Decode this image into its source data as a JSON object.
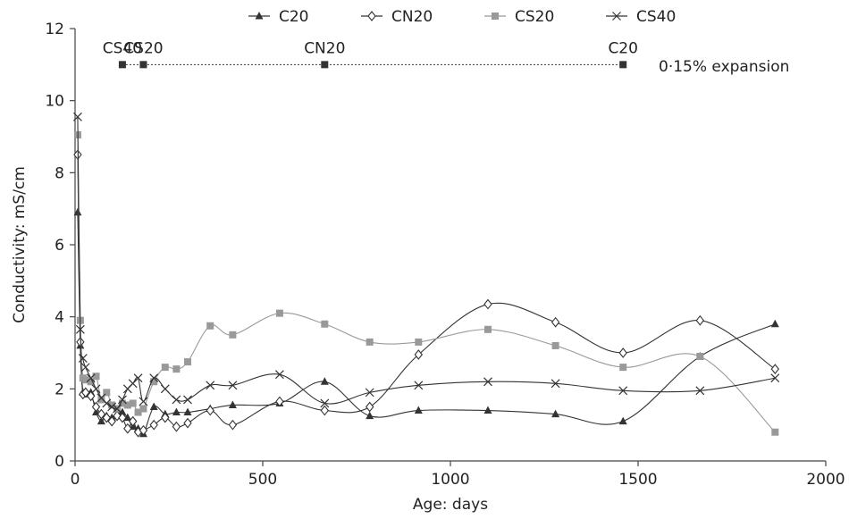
{
  "chart_data": {
    "type": "line",
    "xlabel": "Age: days",
    "ylabel": "Conductivity: mS/cm",
    "xlim": [
      0,
      2000
    ],
    "ylim": [
      0,
      12
    ],
    "x_ticks": [
      0,
      500,
      1000,
      1500,
      2000
    ],
    "y_ticks": [
      0,
      2,
      4,
      6,
      8,
      10,
      12
    ],
    "grid": false,
    "legend_position": "top-center",
    "series": [
      {
        "name": "C20",
        "marker": "triangle",
        "color": "#333333",
        "points": [
          [
            7,
            6.9
          ],
          [
            14,
            3.2
          ],
          [
            21,
            1.9
          ],
          [
            28,
            1.85
          ],
          [
            42,
            1.9
          ],
          [
            56,
            1.35
          ],
          [
            70,
            1.1
          ],
          [
            84,
            1.25
          ],
          [
            98,
            1.2
          ],
          [
            112,
            1.3
          ],
          [
            126,
            1.35
          ],
          [
            140,
            1.2
          ],
          [
            154,
            0.95
          ],
          [
            168,
            0.9
          ],
          [
            182,
            0.75
          ],
          [
            210,
            1.5
          ],
          [
            240,
            1.3
          ],
          [
            270,
            1.35
          ],
          [
            300,
            1.35
          ],
          [
            360,
            1.45
          ],
          [
            420,
            1.55
          ],
          [
            545,
            1.6
          ],
          [
            665,
            2.2
          ],
          [
            785,
            1.25
          ],
          [
            915,
            1.4
          ],
          [
            1100,
            1.4
          ],
          [
            1280,
            1.3
          ],
          [
            1460,
            1.1
          ],
          [
            1665,
            2.9
          ],
          [
            1865,
            3.8
          ]
        ]
      },
      {
        "name": "CN20",
        "marker": "diamond",
        "color": "#333333",
        "points": [
          [
            7,
            8.5
          ],
          [
            14,
            3.3
          ],
          [
            21,
            1.85
          ],
          [
            28,
            1.9
          ],
          [
            42,
            1.8
          ],
          [
            56,
            1.5
          ],
          [
            70,
            1.3
          ],
          [
            84,
            1.2
          ],
          [
            98,
            1.1
          ],
          [
            112,
            1.25
          ],
          [
            126,
            1.2
          ],
          [
            140,
            0.9
          ],
          [
            154,
            1.1
          ],
          [
            168,
            0.8
          ],
          [
            182,
            0.85
          ],
          [
            210,
            1.0
          ],
          [
            240,
            1.2
          ],
          [
            270,
            0.95
          ],
          [
            300,
            1.05
          ],
          [
            360,
            1.4
          ],
          [
            420,
            1.0
          ],
          [
            545,
            1.65
          ],
          [
            665,
            1.4
          ],
          [
            785,
            1.5
          ],
          [
            915,
            2.95
          ],
          [
            1100,
            4.35
          ],
          [
            1280,
            3.85
          ],
          [
            1460,
            3.0
          ],
          [
            1665,
            3.9
          ],
          [
            1865,
            2.55
          ]
        ]
      },
      {
        "name": "CS20",
        "marker": "square",
        "color": "#999999",
        "points": [
          [
            7,
            9.05
          ],
          [
            14,
            3.9
          ],
          [
            21,
            2.3
          ],
          [
            28,
            2.25
          ],
          [
            42,
            2.2
          ],
          [
            56,
            2.35
          ],
          [
            70,
            1.7
          ],
          [
            84,
            1.9
          ],
          [
            98,
            1.55
          ],
          [
            112,
            1.45
          ],
          [
            126,
            1.6
          ],
          [
            140,
            1.55
          ],
          [
            154,
            1.6
          ],
          [
            168,
            1.35
          ],
          [
            182,
            1.45
          ],
          [
            210,
            2.2
          ],
          [
            240,
            2.6
          ],
          [
            270,
            2.55
          ],
          [
            300,
            2.75
          ],
          [
            360,
            3.75
          ],
          [
            420,
            3.5
          ],
          [
            545,
            4.1
          ],
          [
            665,
            3.8
          ],
          [
            785,
            3.3
          ],
          [
            915,
            3.3
          ],
          [
            1100,
            3.65
          ],
          [
            1280,
            3.2
          ],
          [
            1460,
            2.6
          ],
          [
            1665,
            2.9
          ],
          [
            1865,
            0.8
          ]
        ]
      },
      {
        "name": "CS40",
        "marker": "cross",
        "color": "#333333",
        "points": [
          [
            7,
            9.55
          ],
          [
            14,
            3.65
          ],
          [
            21,
            2.85
          ],
          [
            28,
            2.6
          ],
          [
            42,
            2.3
          ],
          [
            56,
            2.0
          ],
          [
            70,
            1.75
          ],
          [
            84,
            1.6
          ],
          [
            98,
            1.5
          ],
          [
            112,
            1.45
          ],
          [
            126,
            1.7
          ],
          [
            140,
            2.0
          ],
          [
            154,
            2.15
          ],
          [
            168,
            2.3
          ],
          [
            182,
            1.65
          ],
          [
            210,
            2.3
          ],
          [
            240,
            2.0
          ],
          [
            270,
            1.7
          ],
          [
            300,
            1.7
          ],
          [
            360,
            2.1
          ],
          [
            420,
            2.1
          ],
          [
            545,
            2.4
          ],
          [
            665,
            1.6
          ],
          [
            785,
            1.9
          ],
          [
            915,
            2.1
          ],
          [
            1100,
            2.2
          ],
          [
            1280,
            2.15
          ],
          [
            1460,
            1.95
          ],
          [
            1665,
            1.95
          ],
          [
            1865,
            2.3
          ]
        ]
      }
    ],
    "expansion_line": {
      "label": "0·15% expansion",
      "y": 11,
      "markers": [
        {
          "label": "CS40",
          "x": 126
        },
        {
          "label": "CS20",
          "x": 182
        },
        {
          "label": "CN20",
          "x": 665
        },
        {
          "label": "C20",
          "x": 1460
        }
      ]
    }
  }
}
